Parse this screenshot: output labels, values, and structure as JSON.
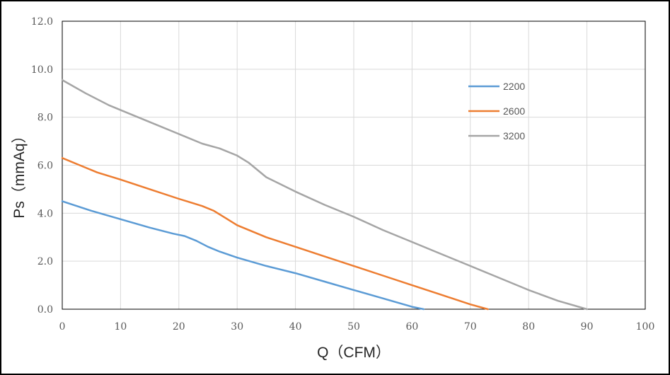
{
  "chart_data": {
    "type": "line",
    "title": "",
    "xlabel": "Q（CFM）",
    "ylabel": "Ps（mmAq）",
    "xlim": [
      0,
      100
    ],
    "ylim": [
      0,
      12
    ],
    "x_ticks": [
      "0",
      "10",
      "20",
      "30",
      "40",
      "50",
      "60",
      "70",
      "80",
      "90",
      "100"
    ],
    "y_ticks": [
      "0.0",
      "2.0",
      "4.0",
      "6.0",
      "8.0",
      "10.0",
      "12.0"
    ],
    "grid": true,
    "legend_position": "right",
    "series": [
      {
        "name": "2200",
        "color": "#5B9BD5",
        "points": [
          [
            0,
            4.5
          ],
          [
            5,
            4.1
          ],
          [
            10,
            3.75
          ],
          [
            15,
            3.4
          ],
          [
            19,
            3.15
          ],
          [
            21,
            3.05
          ],
          [
            23,
            2.85
          ],
          [
            25,
            2.6
          ],
          [
            27,
            2.4
          ],
          [
            30,
            2.15
          ],
          [
            35,
            1.8
          ],
          [
            40,
            1.5
          ],
          [
            45,
            1.15
          ],
          [
            50,
            0.8
          ],
          [
            55,
            0.45
          ],
          [
            60,
            0.1
          ],
          [
            62,
            0
          ]
        ]
      },
      {
        "name": "2600",
        "color": "#ED7D31",
        "points": [
          [
            0,
            6.3
          ],
          [
            3,
            6.0
          ],
          [
            6,
            5.7
          ],
          [
            10,
            5.4
          ],
          [
            15,
            5.0
          ],
          [
            20,
            4.6
          ],
          [
            22,
            4.45
          ],
          [
            24,
            4.3
          ],
          [
            26,
            4.1
          ],
          [
            28,
            3.8
          ],
          [
            30,
            3.5
          ],
          [
            35,
            3.0
          ],
          [
            40,
            2.6
          ],
          [
            45,
            2.2
          ],
          [
            50,
            1.8
          ],
          [
            55,
            1.4
          ],
          [
            60,
            1.0
          ],
          [
            65,
            0.6
          ],
          [
            70,
            0.2
          ],
          [
            73,
            0
          ]
        ]
      },
      {
        "name": "3200",
        "color": "#A5A5A5",
        "points": [
          [
            0,
            9.55
          ],
          [
            4,
            9.0
          ],
          [
            8,
            8.5
          ],
          [
            12,
            8.1
          ],
          [
            16,
            7.7
          ],
          [
            20,
            7.3
          ],
          [
            24,
            6.9
          ],
          [
            27,
            6.7
          ],
          [
            30,
            6.4
          ],
          [
            32,
            6.1
          ],
          [
            35,
            5.5
          ],
          [
            40,
            4.9
          ],
          [
            45,
            4.35
          ],
          [
            50,
            3.85
          ],
          [
            55,
            3.3
          ],
          [
            60,
            2.8
          ],
          [
            65,
            2.3
          ],
          [
            70,
            1.8
          ],
          [
            75,
            1.3
          ],
          [
            80,
            0.8
          ],
          [
            85,
            0.35
          ],
          [
            90,
            0
          ]
        ]
      }
    ]
  }
}
